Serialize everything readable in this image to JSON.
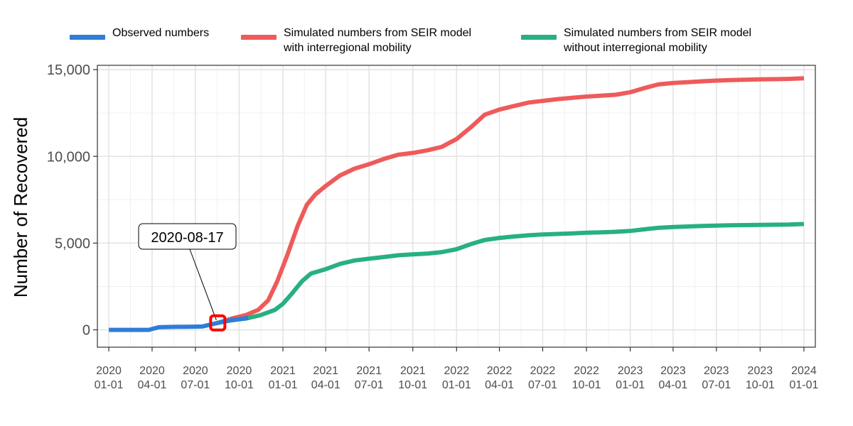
{
  "chart_data": {
    "type": "line",
    "title": "",
    "xlabel": "",
    "ylabel": "Number of Recovered",
    "x_range": [
      "2019-12-08",
      "2024-01-25"
    ],
    "ylim": [
      -1000,
      15250
    ],
    "x_ticks": [
      {
        "date": "2020-01-01",
        "line1": "2020",
        "line2": "01-01"
      },
      {
        "date": "2020-04-01",
        "line1": "2020",
        "line2": "04-01"
      },
      {
        "date": "2020-07-01",
        "line1": "2020",
        "line2": "07-01"
      },
      {
        "date": "2020-10-01",
        "line1": "2020",
        "line2": "10-01"
      },
      {
        "date": "2021-01-01",
        "line1": "2021",
        "line2": "01-01"
      },
      {
        "date": "2021-04-01",
        "line1": "2021",
        "line2": "04-01"
      },
      {
        "date": "2021-07-01",
        "line1": "2021",
        "line2": "07-01"
      },
      {
        "date": "2021-10-01",
        "line1": "2021",
        "line2": "10-01"
      },
      {
        "date": "2022-01-01",
        "line1": "2022",
        "line2": "01-01"
      },
      {
        "date": "2022-04-01",
        "line1": "2022",
        "line2": "04-01"
      },
      {
        "date": "2022-07-01",
        "line1": "2022",
        "line2": "07-01"
      },
      {
        "date": "2022-10-01",
        "line1": "2022",
        "line2": "10-01"
      },
      {
        "date": "2023-01-01",
        "line1": "2023",
        "line2": "01-01"
      },
      {
        "date": "2023-04-01",
        "line1": "2023",
        "line2": "04-01"
      },
      {
        "date": "2023-07-01",
        "line1": "2023",
        "line2": "07-01"
      },
      {
        "date": "2023-10-01",
        "line1": "2023",
        "line2": "10-01"
      },
      {
        "date": "2024-01-01",
        "line1": "2024",
        "line2": "01-01"
      }
    ],
    "y_ticks": [
      {
        "value": 0,
        "label": "0"
      },
      {
        "value": 5000,
        "label": "5,000"
      },
      {
        "value": 10000,
        "label": "10,000"
      },
      {
        "value": 15000,
        "label": "15,000"
      }
    ],
    "grid": true,
    "legend_position": "top",
    "series": [
      {
        "name": "Observed numbers",
        "color": "#2e7dd7",
        "points": [
          [
            "2020-01-01",
            0
          ],
          [
            "2020-02-15",
            0
          ],
          [
            "2020-03-25",
            0
          ],
          [
            "2020-04-15",
            150
          ],
          [
            "2020-05-15",
            170
          ],
          [
            "2020-06-15",
            180
          ],
          [
            "2020-07-15",
            190
          ],
          [
            "2020-08-17",
            400
          ],
          [
            "2020-09-01",
            500
          ],
          [
            "2020-09-20",
            580
          ],
          [
            "2020-10-10",
            650
          ],
          [
            "2020-10-20",
            700
          ]
        ]
      },
      {
        "name": "Simulated numbers from SEIR model\nwith interregional mobility",
        "color": "#ef5a5a",
        "points": [
          [
            "2020-08-17",
            400
          ],
          [
            "2020-09-15",
            650
          ],
          [
            "2020-10-15",
            850
          ],
          [
            "2020-11-10",
            1150
          ],
          [
            "2020-12-01",
            1700
          ],
          [
            "2020-12-20",
            2800
          ],
          [
            "2021-01-10",
            4300
          ],
          [
            "2021-02-01",
            6000
          ],
          [
            "2021-02-20",
            7200
          ],
          [
            "2021-03-10",
            7800
          ],
          [
            "2021-04-01",
            8300
          ],
          [
            "2021-05-01",
            8900
          ],
          [
            "2021-06-01",
            9300
          ],
          [
            "2021-07-01",
            9550
          ],
          [
            "2021-08-01",
            9850
          ],
          [
            "2021-09-01",
            10100
          ],
          [
            "2021-10-01",
            10200
          ],
          [
            "2021-11-01",
            10350
          ],
          [
            "2021-12-01",
            10550
          ],
          [
            "2022-01-01",
            11000
          ],
          [
            "2022-02-01",
            11700
          ],
          [
            "2022-03-01",
            12400
          ],
          [
            "2022-04-01",
            12700
          ],
          [
            "2022-05-01",
            12900
          ],
          [
            "2022-06-01",
            13100
          ],
          [
            "2022-07-01",
            13200
          ],
          [
            "2022-08-01",
            13300
          ],
          [
            "2022-09-01",
            13380
          ],
          [
            "2022-10-01",
            13450
          ],
          [
            "2022-11-01",
            13500
          ],
          [
            "2022-12-01",
            13550
          ],
          [
            "2023-01-01",
            13700
          ],
          [
            "2023-02-01",
            13950
          ],
          [
            "2023-03-01",
            14150
          ],
          [
            "2023-04-01",
            14230
          ],
          [
            "2023-05-01",
            14280
          ],
          [
            "2023-06-01",
            14330
          ],
          [
            "2023-07-01",
            14370
          ],
          [
            "2023-08-01",
            14400
          ],
          [
            "2023-09-01",
            14420
          ],
          [
            "2023-10-01",
            14440
          ],
          [
            "2023-11-01",
            14450
          ],
          [
            "2023-12-01",
            14470
          ],
          [
            "2024-01-01",
            14500
          ]
        ]
      },
      {
        "name": "Simulated numbers from SEIR model\nwithout interregional mobility",
        "color": "#27b081",
        "points": [
          [
            "2020-08-17",
            400
          ],
          [
            "2020-09-15",
            550
          ],
          [
            "2020-10-15",
            650
          ],
          [
            "2020-11-15",
            850
          ],
          [
            "2020-12-15",
            1150
          ],
          [
            "2021-01-01",
            1500
          ],
          [
            "2021-01-20",
            2100
          ],
          [
            "2021-02-10",
            2800
          ],
          [
            "2021-03-01",
            3250
          ],
          [
            "2021-04-01",
            3500
          ],
          [
            "2021-05-01",
            3800
          ],
          [
            "2021-06-01",
            4000
          ],
          [
            "2021-07-01",
            4100
          ],
          [
            "2021-08-01",
            4200
          ],
          [
            "2021-09-01",
            4300
          ],
          [
            "2021-10-01",
            4350
          ],
          [
            "2021-11-01",
            4400
          ],
          [
            "2021-12-01",
            4480
          ],
          [
            "2022-01-01",
            4650
          ],
          [
            "2022-02-01",
            4950
          ],
          [
            "2022-03-01",
            5180
          ],
          [
            "2022-04-01",
            5300
          ],
          [
            "2022-05-01",
            5380
          ],
          [
            "2022-06-01",
            5450
          ],
          [
            "2022-07-01",
            5500
          ],
          [
            "2022-08-01",
            5530
          ],
          [
            "2022-09-01",
            5560
          ],
          [
            "2022-10-01",
            5600
          ],
          [
            "2022-11-01",
            5620
          ],
          [
            "2022-12-01",
            5650
          ],
          [
            "2023-01-01",
            5700
          ],
          [
            "2023-02-01",
            5800
          ],
          [
            "2023-03-01",
            5880
          ],
          [
            "2023-04-01",
            5930
          ],
          [
            "2023-05-01",
            5960
          ],
          [
            "2023-06-01",
            5990
          ],
          [
            "2023-07-01",
            6010
          ],
          [
            "2023-08-01",
            6030
          ],
          [
            "2023-09-01",
            6040
          ],
          [
            "2023-10-01",
            6050
          ],
          [
            "2023-11-01",
            6060
          ],
          [
            "2023-12-01",
            6070
          ],
          [
            "2024-01-01",
            6100
          ]
        ]
      }
    ],
    "annotation": {
      "label": "2020-08-17",
      "date": "2020-08-17",
      "value": 400,
      "marker_color": "#ff0000"
    }
  }
}
